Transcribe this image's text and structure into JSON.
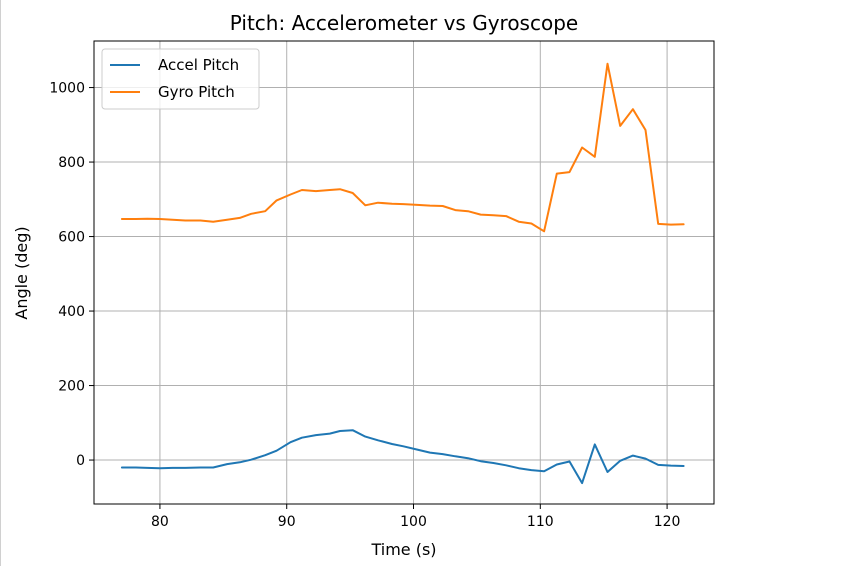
{
  "chart_data": {
    "type": "line",
    "title": "Pitch: Accelerometer vs Gyroscope",
    "xlabel": "Time (s)",
    "ylabel": "Angle (deg)",
    "xlim": [
      74.8,
      123.7
    ],
    "ylim": [
      -118,
      1125
    ],
    "xticks": [
      80,
      90,
      100,
      110,
      120
    ],
    "yticks": [
      0,
      200,
      400,
      600,
      800,
      1000
    ],
    "grid": true,
    "legend_position": "top-left",
    "series": [
      {
        "name": "Accel Pitch",
        "color": "#1f77b4",
        "x": [
          77.0,
          78.1,
          79.0,
          80.0,
          81.0,
          82.0,
          83.2,
          84.2,
          85.3,
          86.3,
          87.2,
          88.3,
          89.2,
          90.3,
          91.2,
          92.3,
          93.4,
          94.2,
          95.2,
          96.2,
          97.2,
          98.3,
          99.2,
          100.3,
          101.3,
          102.3,
          103.3,
          104.3,
          105.3,
          106.3,
          107.3,
          108.3,
          109.3,
          110.3,
          111.3,
          112.3,
          113.3,
          114.3,
          115.3,
          116.3,
          117.3,
          118.3,
          119.3,
          120.3,
          121.3
        ],
        "values": [
          -20,
          -20,
          -21,
          -22,
          -21,
          -21,
          -20,
          -20,
          -11,
          -6,
          1,
          13,
          25,
          48,
          60,
          67,
          71,
          78,
          80,
          63,
          53,
          43,
          37,
          28,
          20,
          16,
          10,
          5,
          -3,
          -8,
          -14,
          -22,
          -27,
          -30,
          -12,
          -4,
          -62,
          42,
          -32,
          -2,
          12,
          4,
          -13,
          -15,
          -16
        ]
      },
      {
        "name": "Gyro Pitch",
        "color": "#ff7f0e",
        "x": [
          77.0,
          78.1,
          79.0,
          80.0,
          81.0,
          82.0,
          83.2,
          84.2,
          85.3,
          86.3,
          87.2,
          88.3,
          89.2,
          90.3,
          91.2,
          92.3,
          93.4,
          94.2,
          95.2,
          96.2,
          97.2,
          98.3,
          99.2,
          100.3,
          101.3,
          102.3,
          103.3,
          104.3,
          105.3,
          106.3,
          107.3,
          108.3,
          109.3,
          110.3,
          111.3,
          112.3,
          113.3,
          114.3,
          115.3,
          116.3,
          117.3,
          118.3,
          119.3,
          120.3,
          121.3
        ],
        "values": [
          647,
          647,
          648,
          647,
          645,
          643,
          643,
          640,
          645,
          650,
          661,
          668,
          697,
          713,
          725,
          722,
          725,
          727,
          717,
          684,
          691,
          688,
          687,
          685,
          683,
          682,
          671,
          668,
          659,
          657,
          655,
          640,
          635,
          614,
          769,
          773,
          839,
          814,
          1064,
          897,
          942,
          886,
          634,
          632,
          633
        ]
      }
    ]
  }
}
